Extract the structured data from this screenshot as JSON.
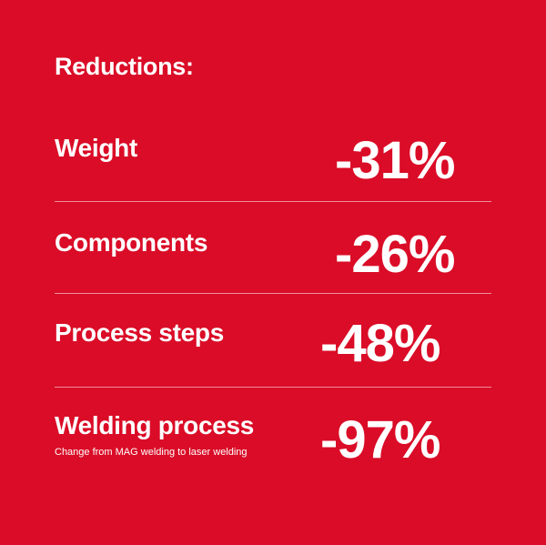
{
  "title": "Reductions:",
  "rows": [
    {
      "label": "Weight",
      "value": "-31%"
    },
    {
      "label": "Components",
      "value": "-26%"
    },
    {
      "label": "Process steps",
      "value": "-48%"
    },
    {
      "label": "Welding process",
      "value": "-97%",
      "note": "Change from MAG welding to laser welding"
    }
  ]
}
